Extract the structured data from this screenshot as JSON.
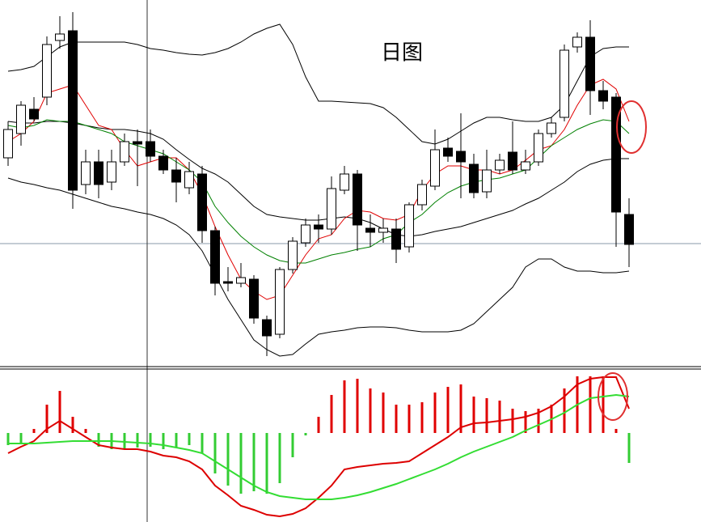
{
  "chart_data": [
    {
      "type": "candlestick",
      "title": "日图",
      "ylim": [
        0,
        455
      ],
      "up_color": "#ffffff",
      "down_color": "#000000",
      "high": [
        305,
        330,
        335,
        410,
        435,
        440,
        270,
        270,
        270,
        290,
        295,
        295,
        270,
        260,
        255,
        250,
        175,
        125,
        130,
        115,
        65,
        125,
        162,
        185,
        190,
        237,
        250,
        245,
        190,
        185,
        185,
        205,
        233,
        295,
        285,
        315,
        265,
        270,
        265,
        305,
        270,
        295,
        310,
        400,
        415,
        430,
        355,
        340,
        210
      ],
      "low": [
        250,
        275,
        305,
        325,
        395,
        197,
        215,
        210,
        220,
        250,
        225,
        255,
        240,
        205,
        215,
        155,
        90,
        95,
        100,
        55,
        15,
        37,
        117,
        150,
        155,
        165,
        215,
        145,
        150,
        155,
        130,
        143,
        195,
        220,
        255,
        210,
        210,
        210,
        240,
        240,
        240,
        250,
        285,
        305,
        390,
        313,
        320,
        150,
        125
      ],
      "open": [
        260,
        290,
        320,
        335,
        405,
        417,
        227,
        255,
        230,
        255,
        280,
        280,
        262,
        245,
        223,
        240,
        170,
        107,
        105,
        110,
        60,
        42,
        122,
        155,
        177,
        172,
        220,
        240,
        173,
        168,
        172,
        150,
        202,
        225,
        272,
        268,
        252,
        218,
        245,
        267,
        245,
        255,
        290,
        310,
        397,
        409,
        343,
        335,
        190
      ],
      "close": [
        295,
        325,
        308,
        400,
        413,
        220,
        255,
        227,
        255,
        280,
        277,
        262,
        245,
        230,
        243,
        170,
        105,
        105,
        112,
        62,
        40,
        122,
        157,
        177,
        172,
        222,
        240,
        177,
        168,
        173,
        147,
        202,
        227,
        270,
        262,
        255,
        217,
        245,
        257,
        245,
        255,
        290,
        303,
        393,
        409,
        343,
        330,
        193,
        153
      ],
      "series": [
        {
          "color": "#000000",
          "values": [
            367,
            369,
            373,
            385,
            397,
            403,
            403,
            403,
            403,
            403,
            400,
            395,
            393,
            390,
            388,
            387,
            390,
            395,
            403,
            413,
            420,
            425,
            400,
            360,
            330,
            330,
            329,
            328,
            327,
            322,
            310,
            295,
            280,
            277,
            283,
            293,
            303,
            310,
            310,
            307,
            305,
            305,
            310,
            325,
            355,
            385,
            395,
            397,
            397
          ]
        },
        {
          "color": "#000000",
          "values": [
            305,
            303,
            303,
            305,
            305,
            303,
            300,
            297,
            295,
            295,
            293,
            290,
            283,
            270,
            258,
            247,
            240,
            230,
            215,
            200,
            190,
            187,
            185,
            183,
            183,
            185,
            187,
            185,
            180,
            172,
            165,
            163,
            165,
            169,
            172,
            175,
            180,
            185,
            190,
            195,
            203,
            210,
            220,
            230,
            243,
            252,
            257,
            259,
            259
          ]
        },
        {
          "color": "#000000",
          "values": [
            235,
            230,
            227,
            223,
            220,
            215,
            210,
            205,
            200,
            197,
            193,
            190,
            185,
            177,
            165,
            145,
            115,
            85,
            60,
            35,
            23,
            15,
            17,
            30,
            42,
            45,
            47,
            50,
            51,
            51,
            50,
            47,
            45,
            45,
            45,
            47,
            55,
            70,
            85,
            100,
            125,
            135,
            135,
            125,
            120,
            120,
            118,
            118,
            120
          ]
        },
        {
          "color": "#e00000",
          "values": [
            280,
            290,
            305,
            340,
            345,
            350,
            325,
            300,
            295,
            270,
            250,
            255,
            260,
            260,
            245,
            215,
            175,
            140,
            110,
            95,
            85,
            90,
            115,
            140,
            160,
            165,
            185,
            195,
            193,
            185,
            183,
            190,
            220,
            240,
            250,
            250,
            245,
            245,
            240,
            245,
            257,
            270,
            275,
            295,
            325,
            350,
            357,
            345,
            305
          ]
        },
        {
          "color": "#008000",
          "values": [
            300,
            297,
            300,
            307,
            305,
            305,
            300,
            295,
            290,
            280,
            275,
            270,
            265,
            255,
            245,
            230,
            200,
            180,
            163,
            150,
            140,
            133,
            130,
            130,
            135,
            140,
            143,
            147,
            150,
            160,
            165,
            180,
            190,
            205,
            217,
            225,
            230,
            233,
            235,
            240,
            245,
            260,
            275,
            285,
            295,
            302,
            307,
            305,
            290
          ]
        }
      ]
    },
    {
      "type": "macd",
      "ylim": [
        -110,
        77
      ],
      "up_color": "#e00000",
      "down_color": "#33cc33",
      "values": [
        -15,
        -13,
        5,
        35,
        52,
        20,
        5,
        -17,
        -20,
        -20,
        -18,
        -17,
        -20,
        -18,
        -15,
        -25,
        -50,
        -65,
        -75,
        -72,
        -75,
        -62,
        -30,
        -3,
        20,
        47,
        65,
        67,
        55,
        50,
        35,
        35,
        38,
        50,
        57,
        60,
        45,
        43,
        40,
        30,
        27,
        30,
        35,
        55,
        70,
        70,
        70,
        5,
        -37
      ],
      "series": [
        {
          "color": "#dd0000",
          "values": [
            -25,
            -17,
            -10,
            5,
            15,
            5,
            -5,
            -15,
            -18,
            -20,
            -20,
            -23,
            -28,
            -30,
            -35,
            -45,
            -65,
            -77,
            -90,
            -95,
            -101,
            -103,
            -100,
            -93,
            -80,
            -65,
            -45,
            -42,
            -40,
            -38,
            -37,
            -35,
            -25,
            -15,
            -5,
            7,
            12,
            13,
            15,
            17,
            20,
            25,
            33,
            45,
            60,
            67,
            69,
            69,
            30
          ]
        },
        {
          "color": "#33dd33",
          "values": [
            -13,
            -13,
            -13,
            -12,
            -11,
            -10,
            -10,
            -10,
            -10,
            -11,
            -12,
            -13,
            -15,
            -18,
            -21,
            -25,
            -35,
            -45,
            -55,
            -65,
            -73,
            -78,
            -80,
            -82,
            -82,
            -82,
            -80,
            -77,
            -73,
            -68,
            -63,
            -57,
            -51,
            -45,
            -38,
            -30,
            -23,
            -17,
            -11,
            -5,
            3,
            10,
            17,
            25,
            35,
            43,
            45,
            47,
            45
          ]
        }
      ]
    }
  ]
}
